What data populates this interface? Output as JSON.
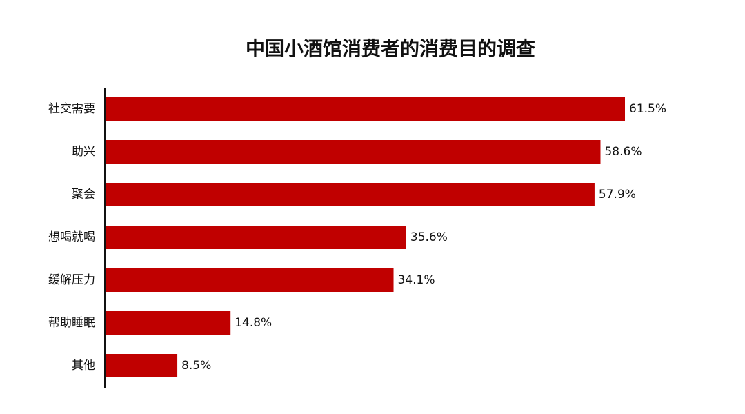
{
  "chart_data": {
    "type": "barh",
    "title": "中国小酒馆消费者的消费目的调查",
    "categories": [
      "社交需要",
      "助兴",
      "聚会",
      "想喝就喝",
      "缓解压力",
      "帮助睡眠",
      "其他"
    ],
    "values": [
      61.5,
      58.6,
      57.9,
      35.6,
      34.1,
      14.8,
      8.5
    ],
    "value_labels": [
      "61.5%",
      "58.6%",
      "57.9%",
      "35.6%",
      "34.1%",
      "14.8%",
      "8.5%"
    ],
    "color": "#c00000"
  }
}
